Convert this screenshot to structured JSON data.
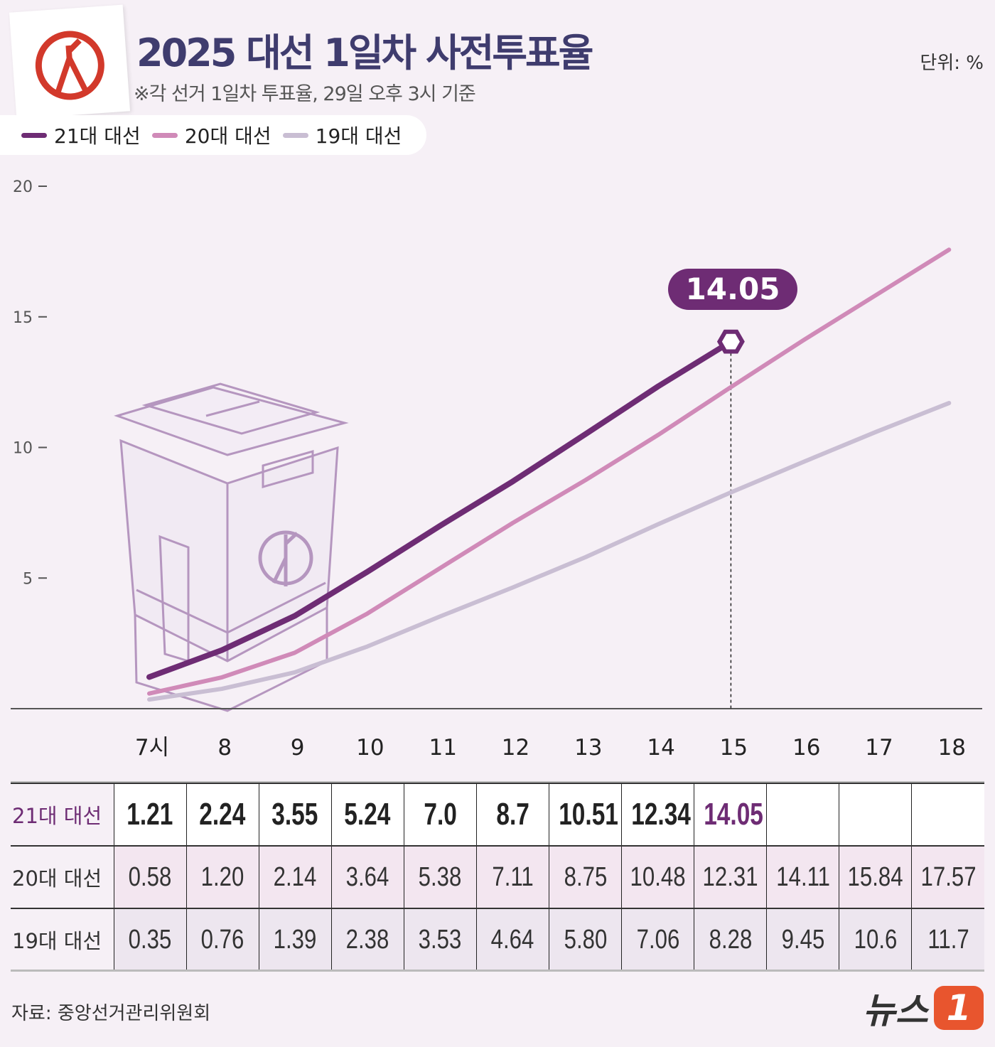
{
  "header": {
    "title": "2025 대선 1일차 사전투표율",
    "subtitle": "※각 선거 1일차 투표율, 29일 오후 3시 기준",
    "unit": "단위: %"
  },
  "legend": [
    {
      "label": "21대 대선",
      "color": "#6e2c74"
    },
    {
      "label": "20대 대선",
      "color": "#d08ab8"
    },
    {
      "label": "19대 대선",
      "color": "#c9bed3"
    }
  ],
  "callout": "14.05",
  "chart_data": {
    "type": "line",
    "title": "2025 대선 1일차 사전투표율",
    "xlabel": "",
    "ylabel": "%",
    "x": [
      "7시",
      "8",
      "9",
      "10",
      "11",
      "12",
      "13",
      "14",
      "15",
      "16",
      "17",
      "18"
    ],
    "yticks": [
      "20",
      "15",
      "10",
      "5"
    ],
    "ylim": [
      0,
      20
    ],
    "series": [
      {
        "name": "21대 대선",
        "color": "#6e2c74",
        "values": [
          "1.21",
          "2.24",
          "3.55",
          "5.24",
          "7.0",
          "8.7",
          "10.51",
          "12.34",
          "14.05",
          null,
          null,
          null
        ]
      },
      {
        "name": "20대 대선",
        "color": "#d08ab8",
        "values": [
          "0.58",
          "1.20",
          "2.14",
          "3.64",
          "5.38",
          "7.11",
          "8.75",
          "10.48",
          "12.31",
          "14.11",
          "15.84",
          "17.57"
        ]
      },
      {
        "name": "19대 대선",
        "color": "#c9bed3",
        "values": [
          "0.35",
          "0.76",
          "1.39",
          "2.38",
          "3.53",
          "4.64",
          "5.80",
          "7.06",
          "8.28",
          "9.45",
          "10.6",
          "11.7"
        ]
      }
    ],
    "highlight": {
      "x": "15",
      "series": "21대 대선",
      "value": 14.05
    }
  },
  "footer": {
    "source": "자료: 중앙선거관리위원회",
    "brand": "뉴스",
    "brand_mark": "1"
  }
}
